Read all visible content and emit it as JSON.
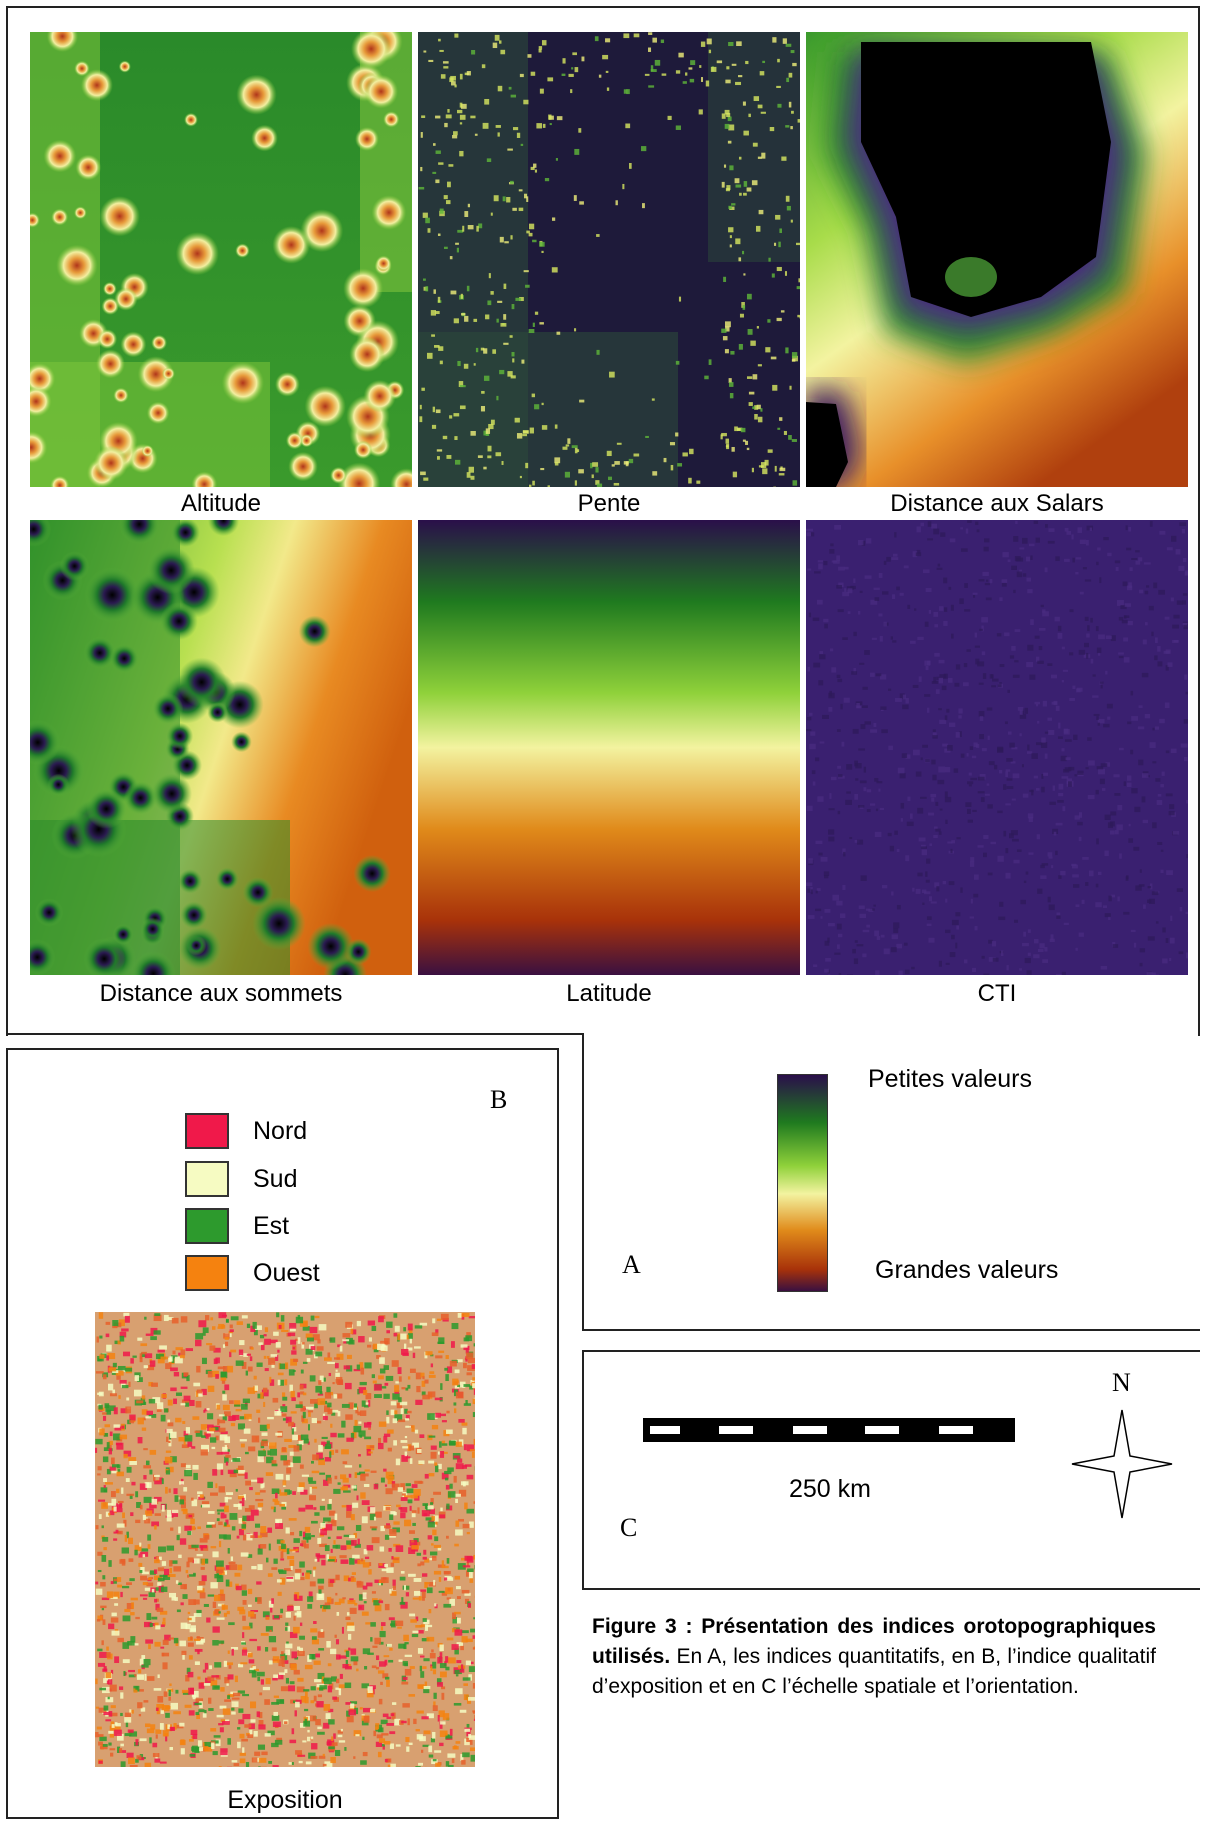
{
  "panel_a": {
    "maps": [
      {
        "label": "Altitude"
      },
      {
        "label": "Pente"
      },
      {
        "label": "Distance aux Salars"
      },
      {
        "label": "Distance aux sommets"
      },
      {
        "label": "Latitude"
      },
      {
        "label": "CTI"
      }
    ],
    "letter": "A",
    "colorbar": {
      "low_label": "Petites valeurs",
      "high_label": "Grandes valeurs",
      "colors": [
        "#2a0f4a",
        "#1f7a1f",
        "#8fd13a",
        "#f3f3a0",
        "#e08a1a",
        "#a8320a",
        "#3a1040"
      ]
    }
  },
  "panel_b": {
    "letter": "B",
    "legend": [
      {
        "label": "Nord",
        "color": "#f0194a"
      },
      {
        "label": "Sud",
        "color": "#f6fbc2"
      },
      {
        "label": "Est",
        "color": "#2d9a2d"
      },
      {
        "label": "Ouest",
        "color": "#f5820f"
      }
    ],
    "map_label": "Exposition"
  },
  "panel_c": {
    "letter": "C",
    "scale_label": "250 km",
    "north_label": "N"
  },
  "figure_caption": {
    "bold": "Figure 3 : Présentation des indices orotopographiques utilisés.",
    "text": " En A, les indices quantitatifs, en B, l’indice qualitatif d’exposition et en C l’échelle spatiale et l’orientation."
  }
}
